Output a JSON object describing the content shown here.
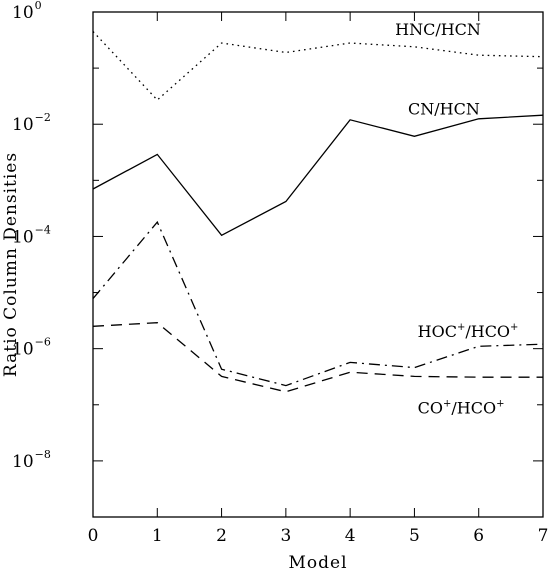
{
  "chart_data": {
    "type": "line",
    "xlabel": "Model",
    "ylabel": "Ratio Column Densities",
    "xlim": [
      0,
      7
    ],
    "ylim": [
      1e-09,
      1
    ],
    "yscale": "log",
    "grid": false,
    "legend": "none",
    "x": [
      0,
      1,
      2,
      3,
      4,
      5,
      6,
      7
    ],
    "x_ticks": [
      "0",
      "1",
      "2",
      "3",
      "4",
      "5",
      "6",
      "7"
    ],
    "y_ticks": [
      {
        "base": "10",
        "exp": "0",
        "value": 1
      },
      {
        "base": "10",
        "exp": "−2",
        "value": 0.01
      },
      {
        "base": "10",
        "exp": "−4",
        "value": 0.0001
      },
      {
        "base": "10",
        "exp": "−6",
        "value": 1e-06
      },
      {
        "base": "10",
        "exp": "−8",
        "value": 1e-08
      }
    ],
    "series": [
      {
        "label_parts": [
          "HNC/HCN"
        ],
        "label_x": 4.7,
        "label_y": 0.39,
        "dash": "dotted",
        "values": [
          0.45,
          0.027,
          0.28,
          0.19,
          0.28,
          0.24,
          0.17,
          0.16
        ]
      },
      {
        "label_parts": [
          "CN/HCN"
        ],
        "label_x": 4.9,
        "label_y": 0.015,
        "dash": "solid",
        "values": [
          0.0007,
          0.0029,
          0.000105,
          0.00042,
          0.012,
          0.0061,
          0.0125,
          0.0145
        ]
      },
      {
        "label_parts": [
          "HOC",
          "+",
          "/HCO",
          "+"
        ],
        "label_x": 5.05,
        "label_y": 1.6e-06,
        "dash": "dashdot",
        "values": [
          7.8e-06,
          0.00018,
          4.3e-07,
          2.2e-07,
          5.7e-07,
          4.6e-07,
          1.1e-06,
          1.2e-06
        ]
      },
      {
        "label_parts": [
          "CO",
          "+",
          "/HCO",
          "+"
        ],
        "label_x": 5.05,
        "label_y": 7e-08,
        "dash": "dashed",
        "values": [
          2.5e-06,
          2.9e-06,
          3.2e-07,
          1.7e-07,
          3.8e-07,
          3.2e-07,
          3.1e-07,
          3.1e-07
        ]
      }
    ]
  }
}
